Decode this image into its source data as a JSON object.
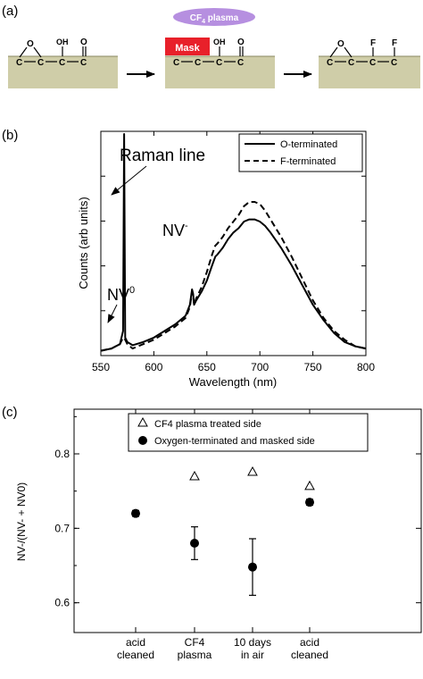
{
  "panel_a": {
    "label": "(a)",
    "plasma_label": "CF",
    "plasma_sub": "4",
    "plasma_suffix": " plasma",
    "mask_label": "Mask",
    "oxygen": "O",
    "hydroxyl": "OH",
    "fluorine": "F",
    "chain_carbon": "C",
    "colors": {
      "surface": "#cfcda8",
      "mask": "#e8202a",
      "plasma": "#b68fe0"
    }
  },
  "chart_data": [
    {
      "type": "line",
      "panel_label": "(b)",
      "xlabel": "Wavelength (nm)",
      "ylabel": "Counts (arb units)",
      "xlim": [
        550,
        800
      ],
      "xticks": [
        550,
        600,
        650,
        700,
        750,
        800
      ],
      "legend_position": "top-right",
      "annotations": {
        "raman": "Raman line",
        "nv_minus": "NV",
        "nv_minus_sup": "-",
        "nv_zero": "NV",
        "nv_zero_sup": "0"
      },
      "series": [
        {
          "name": "O-terminated",
          "style": "solid",
          "x": [
            550,
            560,
            568,
            571,
            572,
            573,
            575,
            580,
            590,
            600,
            610,
            620,
            630,
            634,
            636,
            637,
            638,
            640,
            645,
            650,
            655,
            658,
            660,
            665,
            670,
            675,
            680,
            685,
            690,
            695,
            700,
            705,
            710,
            720,
            730,
            740,
            750,
            760,
            770,
            780,
            790,
            800
          ],
          "y": [
            0.01,
            0.02,
            0.04,
            0.1,
            1.0,
            0.07,
            0.05,
            0.035,
            0.05,
            0.07,
            0.1,
            0.13,
            0.17,
            0.22,
            0.29,
            0.27,
            0.22,
            0.24,
            0.28,
            0.33,
            0.4,
            0.44,
            0.45,
            0.48,
            0.52,
            0.55,
            0.57,
            0.6,
            0.61,
            0.61,
            0.6,
            0.58,
            0.55,
            0.48,
            0.4,
            0.31,
            0.22,
            0.15,
            0.09,
            0.05,
            0.03,
            0.02
          ]
        },
        {
          "name": "F-terminated",
          "style": "dashed",
          "x": [
            550,
            560,
            568,
            571,
            573,
            575,
            580,
            590,
            600,
            610,
            620,
            630,
            634,
            636,
            637,
            638,
            640,
            645,
            650,
            655,
            658,
            660,
            665,
            670,
            675,
            680,
            685,
            690,
            695,
            700,
            705,
            710,
            720,
            730,
            740,
            750,
            760,
            770,
            780,
            790,
            800
          ],
          "y": [
            0.01,
            0.02,
            0.04,
            0.07,
            0.06,
            0.04,
            0.02,
            0.04,
            0.06,
            0.09,
            0.12,
            0.16,
            0.21,
            0.28,
            0.26,
            0.22,
            0.25,
            0.3,
            0.37,
            0.45,
            0.49,
            0.5,
            0.53,
            0.57,
            0.6,
            0.63,
            0.67,
            0.69,
            0.69,
            0.68,
            0.65,
            0.61,
            0.53,
            0.44,
            0.34,
            0.24,
            0.16,
            0.1,
            0.06,
            0.03,
            0.02
          ]
        }
      ]
    },
    {
      "type": "scatter",
      "panel_label": "(c)",
      "ylabel": "NV-/(NV- + NV0)",
      "ylim": [
        0.56,
        0.86
      ],
      "yticks": [
        0.6,
        0.7,
        0.8
      ],
      "legend_position": "top-center",
      "categories": [
        [
          "acid",
          "cleaned"
        ],
        [
          "CF4",
          "plasma"
        ],
        [
          "10 days",
          "in air"
        ],
        [
          "acid",
          "cleaned"
        ]
      ],
      "series": [
        {
          "name": "CF4 plasma treated side",
          "marker": "open-triangle",
          "values": [
            null,
            0.77,
            0.776,
            0.757
          ]
        },
        {
          "name": "Oxygen-terminated and masked side",
          "marker": "filled-circle",
          "values": [
            0.72,
            0.68,
            0.648,
            0.735
          ],
          "errors": [
            0.004,
            0.022,
            0.038,
            0.004
          ]
        }
      ]
    }
  ]
}
